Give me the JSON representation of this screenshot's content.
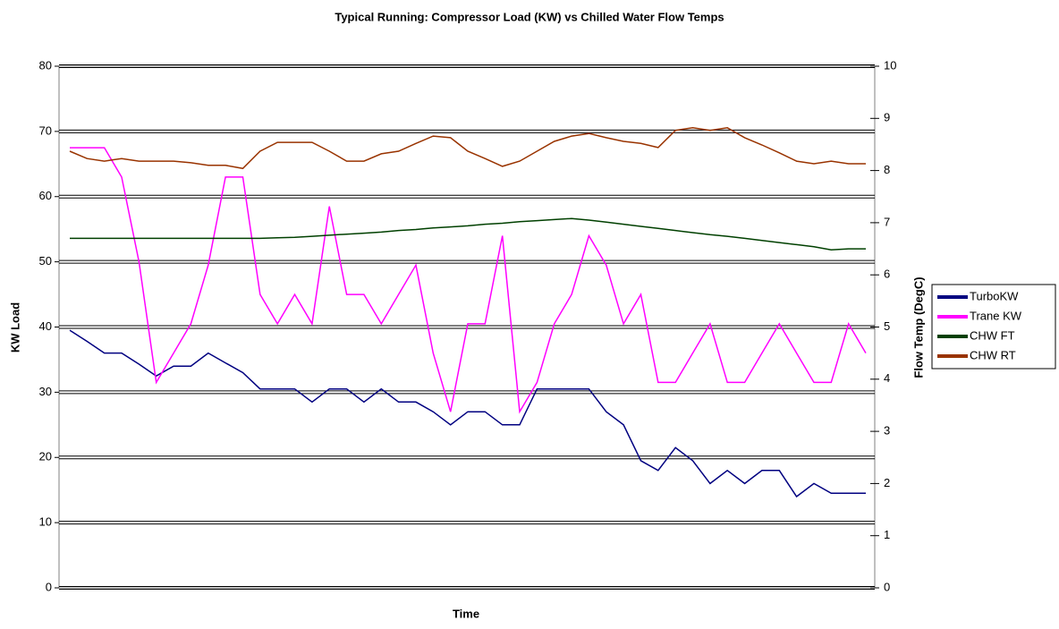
{
  "chart_data": {
    "type": "line",
    "title": "Typical Running:  Compressor Load (KW) vs Chilled Water Flow Temps",
    "xlabel": "Time",
    "ylabel": "KW Load",
    "y2label": "Flow Temp (DegC)",
    "categories": [
      null,
      null,
      null,
      null,
      null,
      null,
      null,
      null,
      null,
      null,
      null,
      null,
      null,
      null,
      null,
      null,
      null,
      null,
      null,
      null,
      null,
      null,
      null,
      null,
      null,
      null,
      null,
      null,
      null,
      null,
      null,
      null,
      null,
      null,
      null,
      null,
      null,
      null,
      null,
      null,
      null,
      null,
      null,
      null,
      null,
      null,
      null
    ],
    "ylim": [
      0,
      80
    ],
    "yticks": [
      0,
      10,
      20,
      30,
      40,
      50,
      60,
      70,
      80
    ],
    "y2lim": [
      0,
      10
    ],
    "y2ticks": [
      0,
      1,
      2,
      3,
      4,
      5,
      6,
      7,
      8,
      9,
      10
    ],
    "grid": true,
    "legend": "right",
    "series": [
      {
        "name": "TurboKW",
        "color": "#000080",
        "values": [
          39.5,
          37.8,
          36,
          36,
          34.3,
          32.5,
          34,
          34,
          36,
          34.5,
          33,
          30.5,
          30.5,
          30.5,
          28.5,
          30.5,
          30.5,
          28.5,
          30.5,
          28.5,
          28.5,
          27,
          25,
          27,
          27,
          25,
          25,
          30.5,
          30.5,
          30.5,
          30.5,
          27,
          25,
          19.5,
          18,
          21.5,
          19.5,
          16,
          18,
          16,
          18,
          18,
          14,
          16,
          14.5,
          14.5,
          14.5
        ]
      },
      {
        "name": "Trane KW",
        "color": "#ff00ff",
        "values": [
          67.5,
          67.5,
          67.5,
          63,
          50,
          31.5,
          36,
          40.5,
          49.5,
          63,
          63,
          45,
          40.5,
          45,
          40.5,
          58.5,
          45,
          45,
          40.5,
          45,
          49.5,
          36,
          27,
          40.5,
          40.5,
          54,
          27,
          31.5,
          40.5,
          45,
          54,
          49.5,
          40.5,
          45,
          31.5,
          31.5,
          36,
          40.5,
          31.5,
          31.5,
          36,
          40.5,
          36,
          31.5,
          31.5,
          40.5,
          36
        ]
      },
      {
        "name": "CHW FT",
        "color": "#004000",
        "axis": "y2",
        "values": [
          6.7,
          6.7,
          6.7,
          6.7,
          6.7,
          6.7,
          6.7,
          6.7,
          6.7,
          6.7,
          6.7,
          6.7,
          6.71,
          6.72,
          6.74,
          6.76,
          6.78,
          6.8,
          6.82,
          6.85,
          6.87,
          6.9,
          6.92,
          6.94,
          6.97,
          6.99,
          7.02,
          7.04,
          7.06,
          7.08,
          7.05,
          7.01,
          6.97,
          6.93,
          6.89,
          6.85,
          6.81,
          6.77,
          6.74,
          6.7,
          6.66,
          6.62,
          6.58,
          6.54,
          6.48,
          6.5,
          6.5
        ]
      },
      {
        "name": "CHW RT",
        "color": "#993300",
        "axis": "y2",
        "values": [
          8.37,
          8.23,
          8.18,
          8.23,
          8.18,
          8.18,
          8.18,
          8.15,
          8.1,
          8.1,
          8.04,
          8.37,
          8.54,
          8.54,
          8.54,
          8.37,
          8.18,
          8.18,
          8.32,
          8.37,
          8.52,
          8.66,
          8.63,
          8.37,
          8.23,
          8.08,
          8.18,
          8.37,
          8.56,
          8.66,
          8.71,
          8.63,
          8.56,
          8.52,
          8.44,
          8.77,
          8.82,
          8.77,
          8.82,
          8.63,
          8.49,
          8.34,
          8.18,
          8.13,
          8.18,
          8.13,
          8.13
        ]
      }
    ]
  }
}
